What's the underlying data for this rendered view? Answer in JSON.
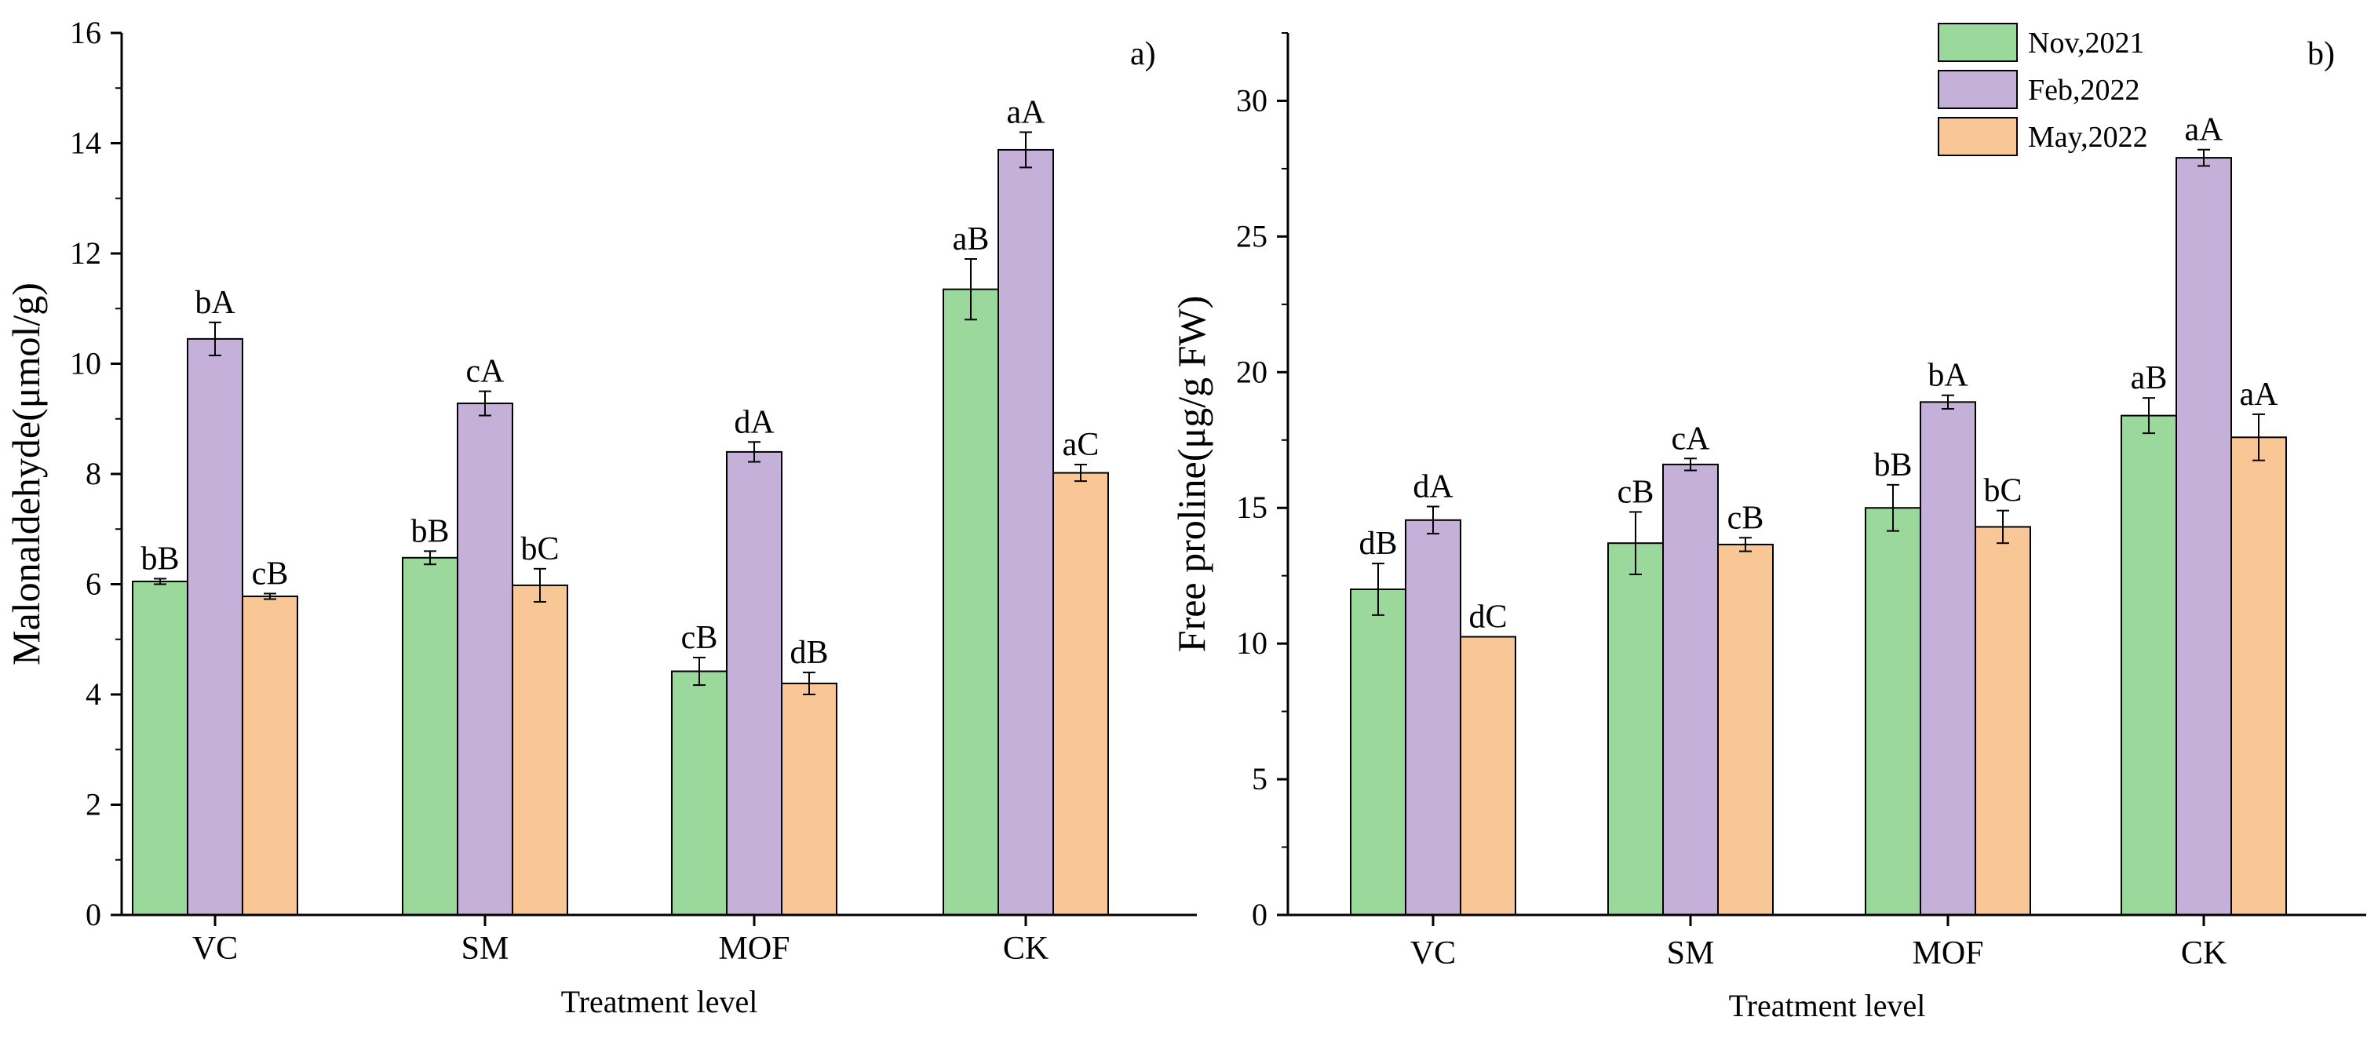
{
  "colors": {
    "Nov,2021": "#9bd89b",
    "Feb,2022": "#c4b0d8",
    "May,2022": "#f9c795",
    "axis": "#000000"
  },
  "chart_data": [
    {
      "type": "bar",
      "panel_label": "a)",
      "categories": [
        "VC",
        "SM",
        "MOF",
        "CK"
      ],
      "xlabel": "Treatment level",
      "ylabel": "Malonaldehyde(μmol/g)",
      "ylim": [
        0,
        16
      ],
      "yticks": [
        "0",
        "2",
        "4",
        "6",
        "8",
        "10",
        "12",
        "14",
        "16"
      ],
      "series": [
        {
          "name": "Nov,2021",
          "values": [
            6.05,
            6.48,
            4.42,
            11.35
          ],
          "errors": [
            0.05,
            0.12,
            0.25,
            0.55
          ],
          "labels": [
            "bB",
            "bB",
            "cB",
            "aB"
          ]
        },
        {
          "name": "Feb,2022",
          "values": [
            10.45,
            9.28,
            8.4,
            13.88
          ],
          "errors": [
            0.3,
            0.22,
            0.18,
            0.32
          ],
          "labels": [
            "bA",
            "cA",
            "dA",
            "aA"
          ]
        },
        {
          "name": "May,2022",
          "values": [
            5.78,
            5.98,
            4.2,
            8.02
          ],
          "errors": [
            0.05,
            0.3,
            0.2,
            0.15
          ],
          "labels": [
            "cB",
            "bC",
            "dB",
            "aC"
          ]
        }
      ]
    },
    {
      "type": "bar",
      "panel_label": "b)",
      "categories": [
        "VC",
        "SM",
        "MOF",
        "CK"
      ],
      "xlabel": "Treatment level",
      "ylabel": "Free proline(μg/g FW)",
      "ylim": [
        0,
        32.5
      ],
      "yticks": [
        "0",
        "5",
        "10",
        "15",
        "20",
        "25",
        "30"
      ],
      "legend": [
        "Nov,2021",
        "Feb,2022",
        "May,2022"
      ],
      "series": [
        {
          "name": "Nov,2021",
          "values": [
            12.0,
            13.7,
            15.0,
            18.4
          ],
          "errors": [
            0.95,
            1.15,
            0.85,
            0.65
          ],
          "labels": [
            "dB",
            "cB",
            "bB",
            "aB"
          ]
        },
        {
          "name": "Feb,2022",
          "values": [
            14.55,
            16.6,
            18.9,
            27.9
          ],
          "errors": [
            0.5,
            0.22,
            0.25,
            0.3
          ],
          "labels": [
            "dA",
            "cA",
            "bA",
            "aA"
          ]
        },
        {
          "name": "May,2022",
          "values": [
            10.25,
            13.65,
            14.3,
            17.6
          ],
          "errors": [
            0.0,
            0.25,
            0.6,
            0.85
          ],
          "labels": [
            "dC",
            "cB",
            "bC",
            "aA"
          ]
        }
      ]
    }
  ]
}
